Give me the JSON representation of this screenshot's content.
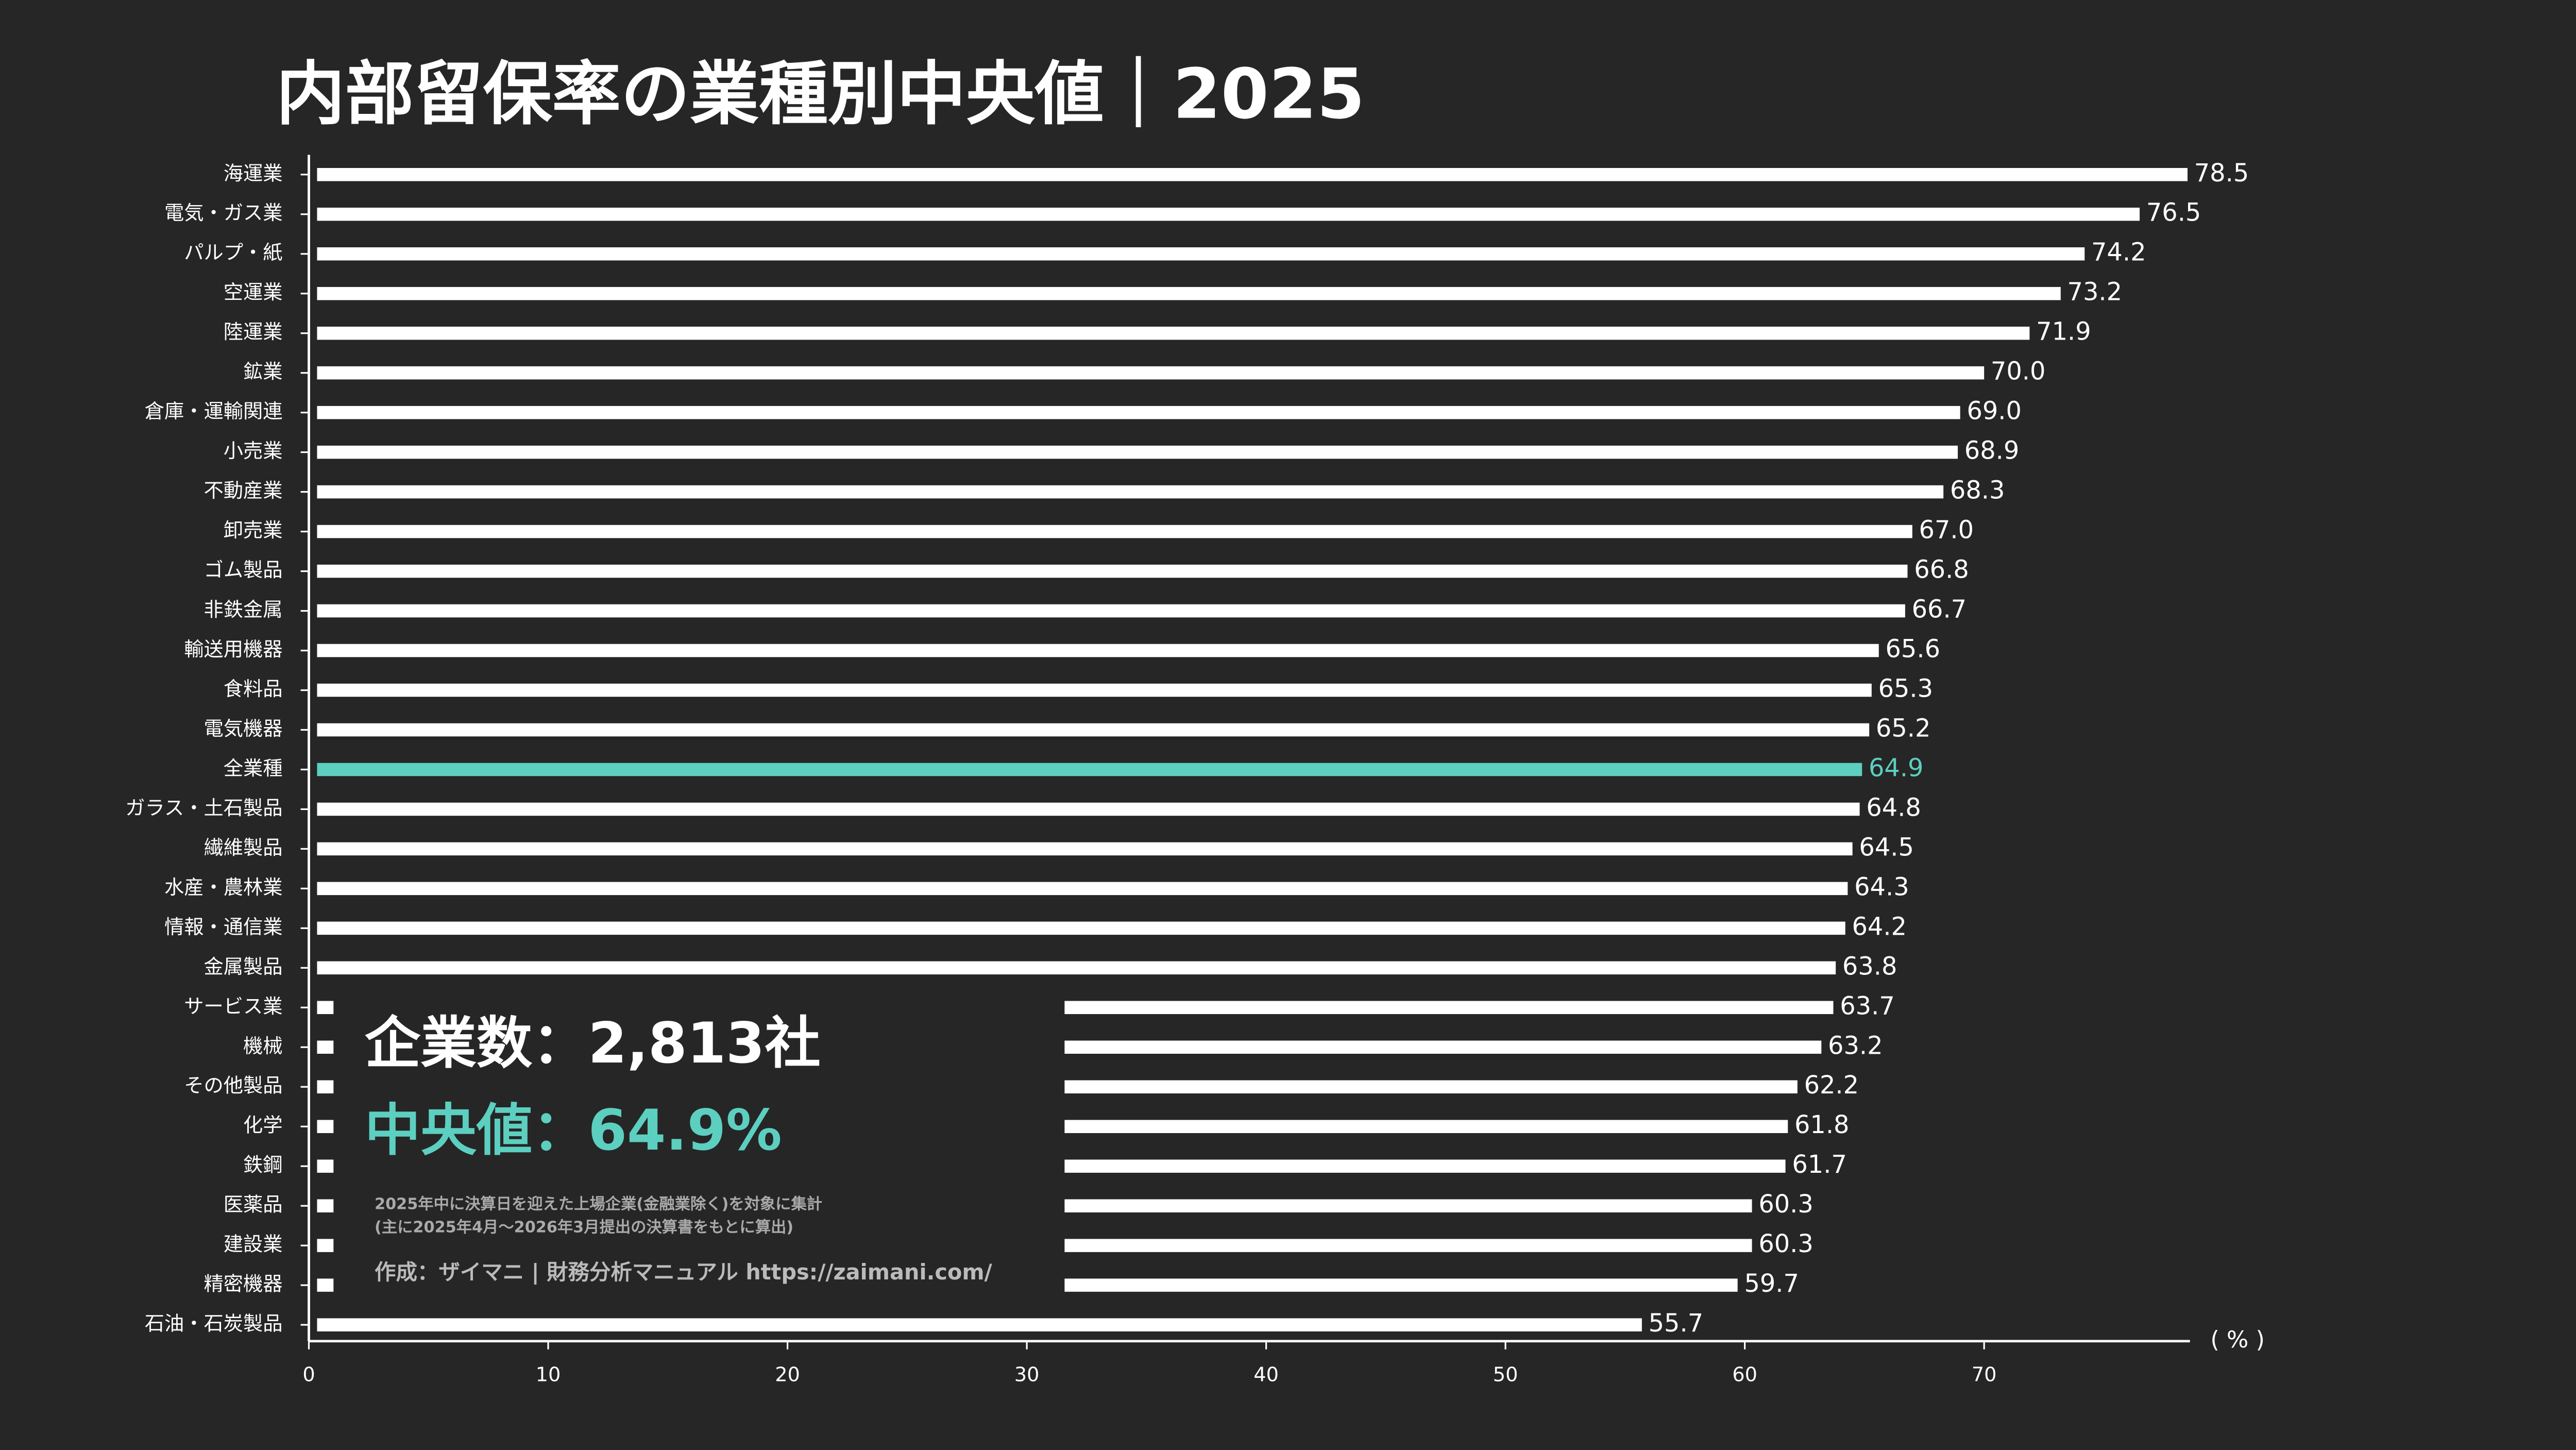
{
  "chart_data": {
    "type": "hbar",
    "title": "内部留保率の業種別中央値｜2025",
    "categories": [
      "海運業",
      "電気・ガス業",
      "パルプ・紙",
      "空運業",
      "陸運業",
      "鉱業",
      "倉庫・運輸関連",
      "小売業",
      "不動産業",
      "卸売業",
      "ゴム製品",
      "非鉄金属",
      "輸送用機器",
      "食料品",
      "電気機器",
      "全業種",
      "ガラス・土石製品",
      "繊維製品",
      "水産・農林業",
      "情報・通信業",
      "金属製品",
      "サービス業",
      "機械",
      "その他製品",
      "化学",
      "鉄鋼",
      "医薬品",
      "建設業",
      "精密機器",
      "石油・石炭製品"
    ],
    "values": [
      78.5,
      76.5,
      74.2,
      73.2,
      71.9,
      70.0,
      69.0,
      68.9,
      68.3,
      67.0,
      66.8,
      66.7,
      65.6,
      65.3,
      65.2,
      64.9,
      64.8,
      64.5,
      64.3,
      64.2,
      63.8,
      63.7,
      63.2,
      62.2,
      61.8,
      61.7,
      60.3,
      60.3,
      59.7,
      55.7
    ],
    "value_labels": [
      "78.5",
      "76.5",
      "74.2",
      "73.2",
      "71.9",
      "70.0",
      "69.0",
      "68.9",
      "68.3",
      "67.0",
      "66.8",
      "66.7",
      "65.6",
      "65.3",
      "65.2",
      "64.9",
      "64.8",
      "64.5",
      "64.3",
      "64.2",
      "63.8",
      "63.7",
      "63.2",
      "62.2",
      "61.8",
      "61.7",
      "60.3",
      "60.3",
      "59.7",
      "55.7"
    ],
    "colors": [
      "#ffffff",
      "#ffffff",
      "#ffffff",
      "#ffffff",
      "#ffffff",
      "#ffffff",
      "#ffffff",
      "#ffffff",
      "#ffffff",
      "#ffffff",
      "#ffffff",
      "#ffffff",
      "#ffffff",
      "#ffffff",
      "#ffffff",
      "#5ccfc0",
      "#ffffff",
      "#ffffff",
      "#ffffff",
      "#ffffff",
      "#ffffff",
      "#ffffff",
      "#ffffff",
      "#ffffff",
      "#ffffff",
      "#ffffff",
      "#ffffff",
      "#ffffff",
      "#ffffff",
      "#ffffff"
    ],
    "xlim": [
      0,
      78.6
    ],
    "xticks": [
      0,
      10,
      20,
      30,
      40,
      50,
      60,
      70
    ],
    "x_label": "( % )",
    "annotations": {
      "count": "企業数：2,813社",
      "median": "中央値：64.9%",
      "note1": "2025年中に決算日を迎えた上場企業(金融業除く)を対象に集計",
      "note2": "(主に2025年4月〜2026年3月提出の決算書をもとに算出)",
      "credit": "作成：ザイマニ | 財務分析マニュアル https://zaimani.com/"
    }
  }
}
